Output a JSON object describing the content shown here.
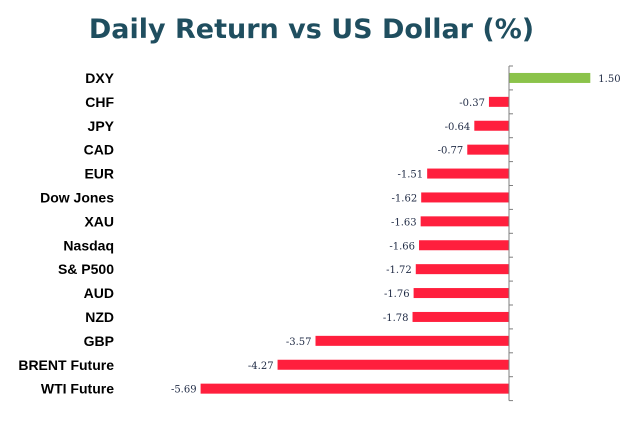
{
  "chart_data": {
    "type": "bar",
    "orientation": "horizontal",
    "title": "Daily Return vs US Dollar (%)",
    "categories": [
      "DXY",
      "CHF",
      "JPY",
      "CAD",
      "EUR",
      "Dow Jones",
      "XAU",
      "Nasdaq",
      "S& P500",
      "AUD",
      "NZD",
      "GBP",
      "BRENT Future",
      "WTI Future"
    ],
    "values": [
      1.5,
      -0.37,
      -0.64,
      -0.77,
      -1.51,
      -1.62,
      -1.63,
      -1.66,
      -1.72,
      -1.76,
      -1.78,
      -3.57,
      -4.27,
      -5.69
    ],
    "value_labels": [
      "1.50",
      "-0.37",
      "-0.64",
      "-0.77",
      "-1.51",
      "-1.62",
      "-1.63",
      "-1.66",
      "-1.72",
      "-1.76",
      "-1.78",
      "-3.57",
      "-4.27",
      "-5.69"
    ],
    "colors": {
      "positive": "#8bc34a",
      "negative": "#ff1f3d",
      "axis": "#7f7f7f"
    },
    "xlim": [
      -5.69,
      1.5
    ],
    "grid": false,
    "legend": "none"
  }
}
